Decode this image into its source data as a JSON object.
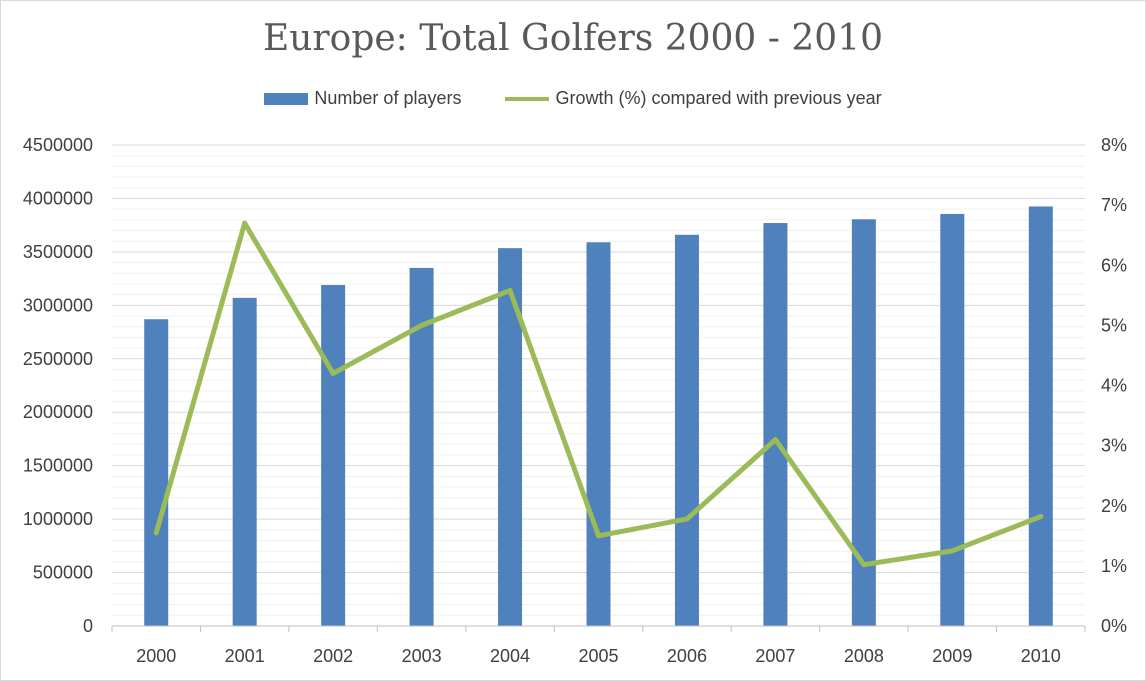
{
  "chart_data": {
    "type": "bar",
    "title": "Europe: Total Golfers 2000 - 2010",
    "xlabel": "",
    "ylabel": "",
    "categories": [
      "2000",
      "2001",
      "2002",
      "2003",
      "2004",
      "2005",
      "2006",
      "2007",
      "2008",
      "2009",
      "2010"
    ],
    "series": [
      {
        "name": "Number of players",
        "type": "bar",
        "axis": "left",
        "color": "#4f81bd",
        "values": [
          2870000,
          3070000,
          3190000,
          3350000,
          3535000,
          3590000,
          3660000,
          3770000,
          3805000,
          3855000,
          3925000
        ]
      },
      {
        "name": "Growth (%) compared with previous year",
        "type": "line",
        "axis": "right",
        "color": "#9bbb59",
        "values": [
          1.55,
          6.7,
          4.2,
          5.0,
          5.58,
          1.5,
          1.78,
          3.1,
          1.02,
          1.25,
          1.82
        ]
      }
    ],
    "y_left": {
      "min": 0,
      "max": 4500000,
      "step": 500000,
      "ticks": [
        "0",
        "500000",
        "1000000",
        "1500000",
        "2000000",
        "2500000",
        "3000000",
        "3500000",
        "4000000",
        "4500000"
      ]
    },
    "y_right": {
      "min": 0,
      "max": 8,
      "step": 1,
      "ticks": [
        "0%",
        "1%",
        "2%",
        "3%",
        "4%",
        "5%",
        "6%",
        "7%",
        "8%"
      ]
    },
    "legend": "top-center",
    "grid": true
  }
}
